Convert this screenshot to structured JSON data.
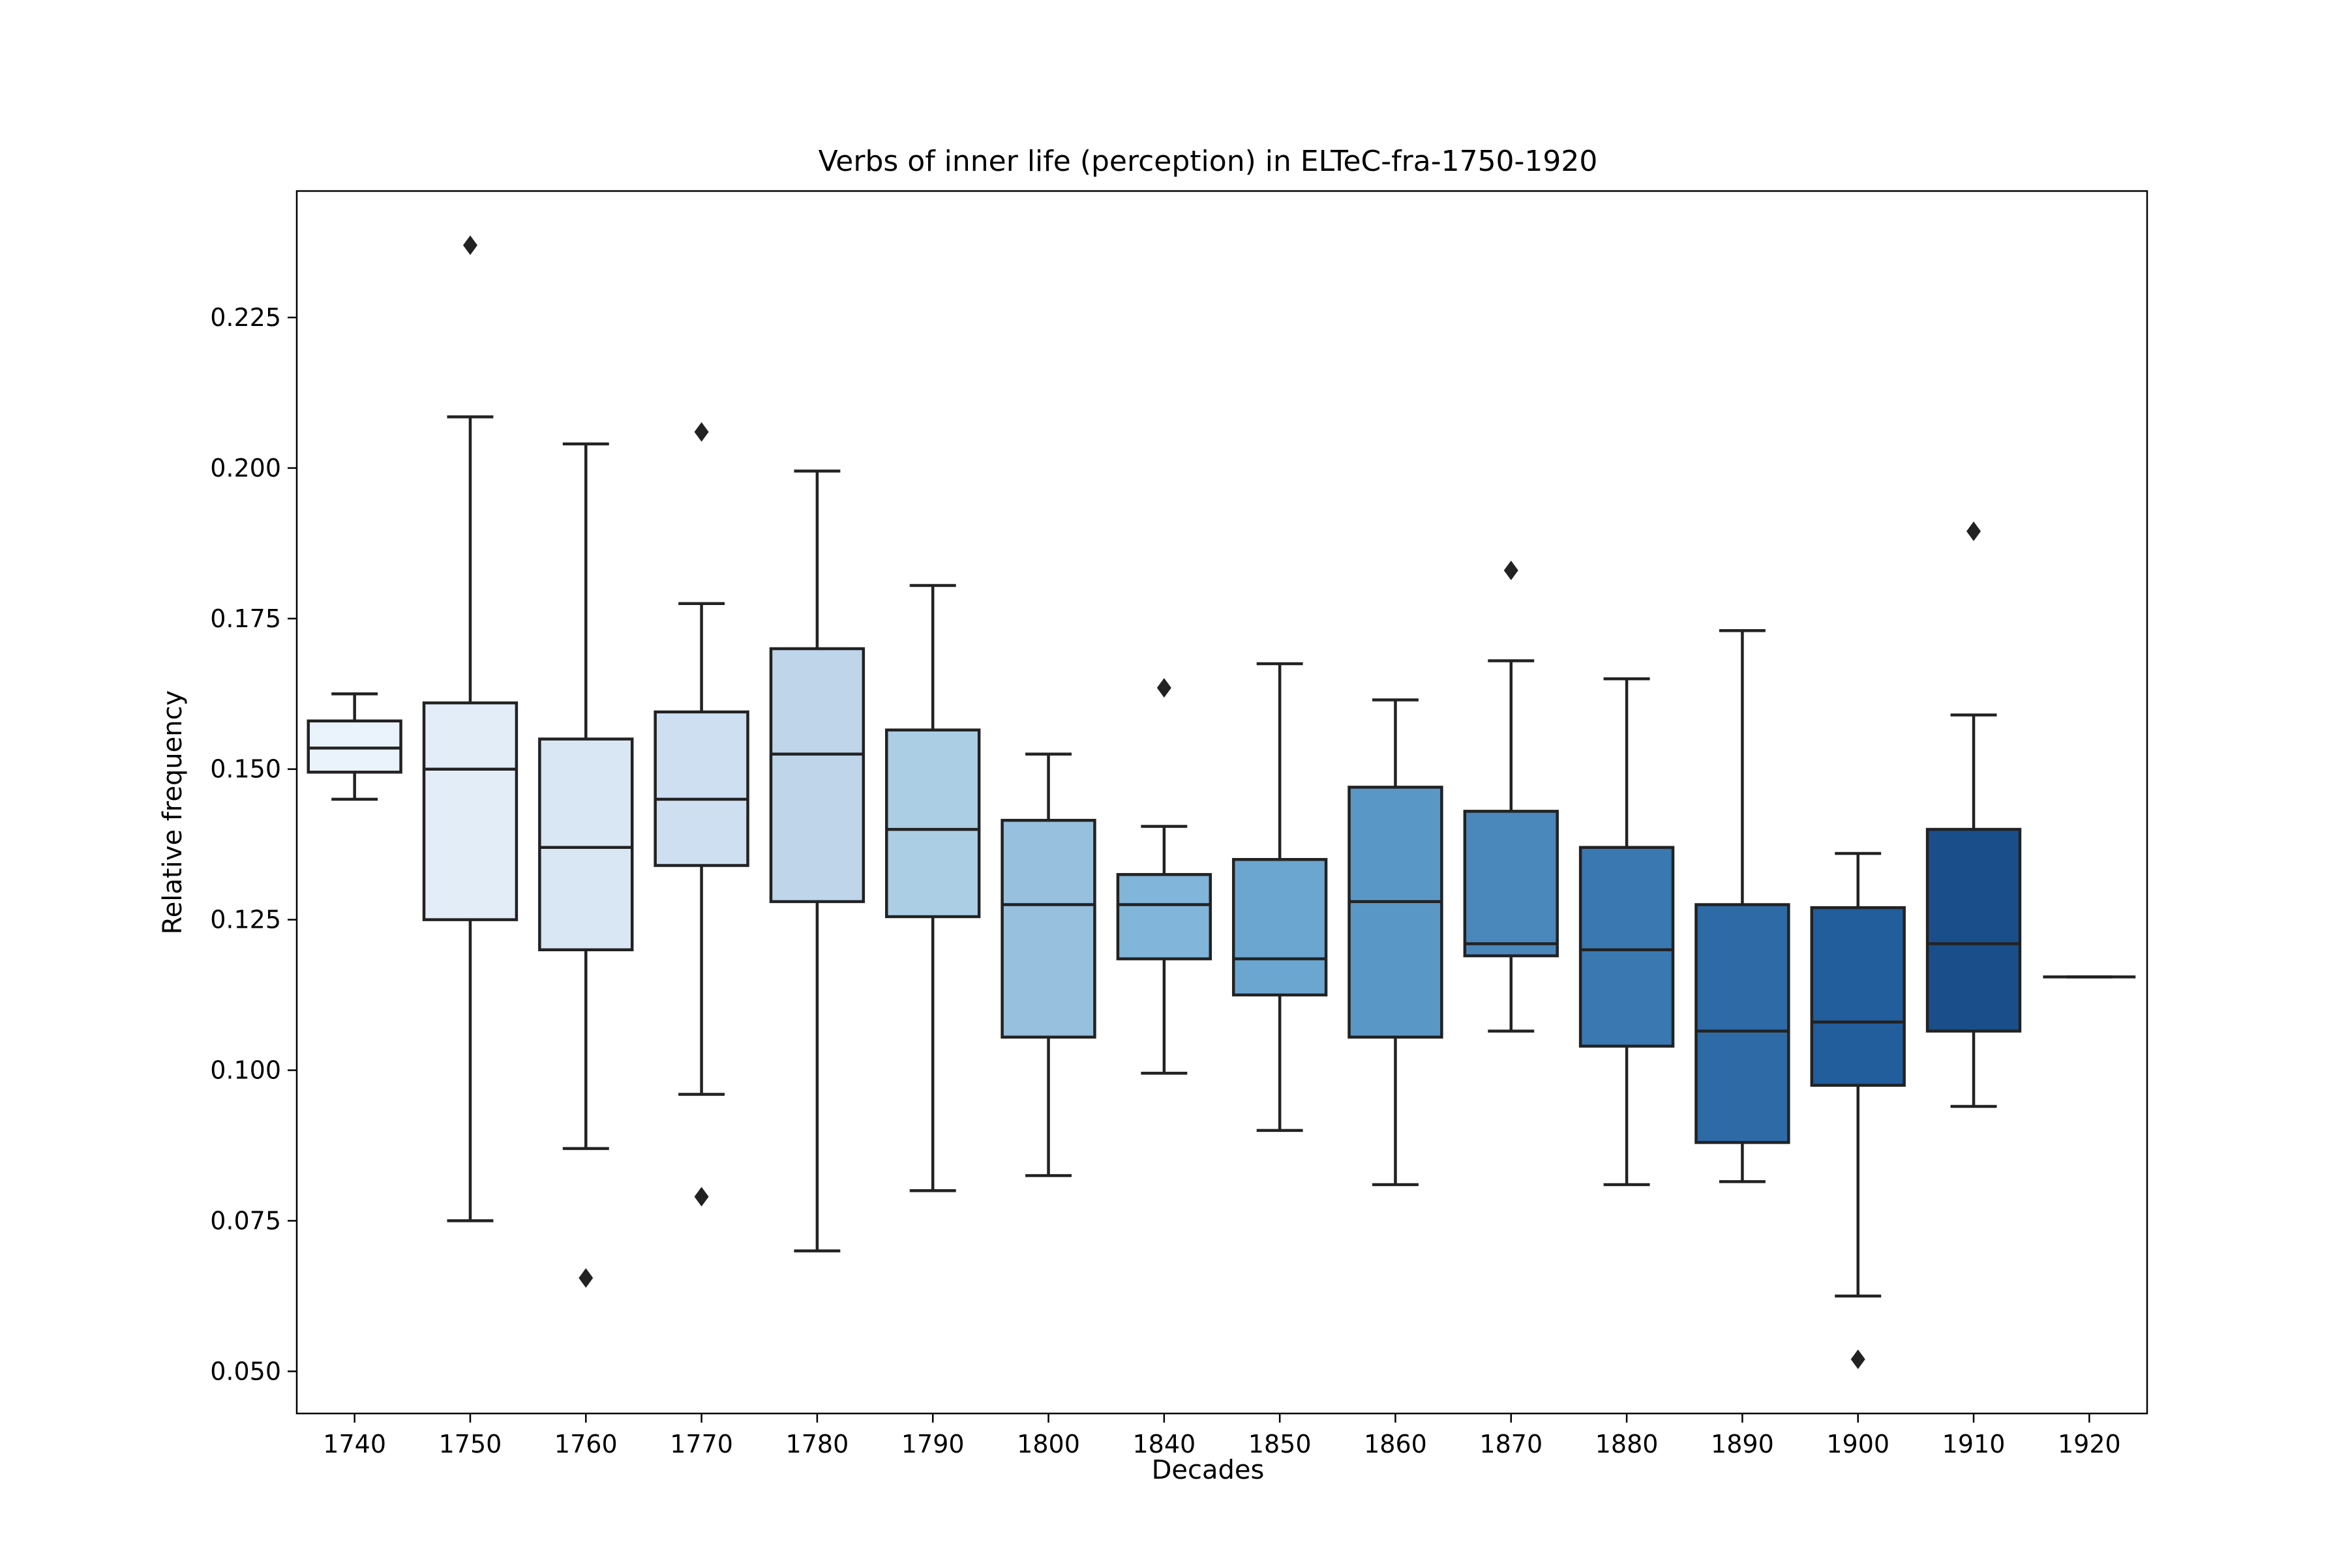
{
  "chart_data": {
    "type": "box",
    "title": "Verbs of inner life (perception) in ELTeC-fra-1750-1920",
    "xlabel": "Decades",
    "ylabel": "Relative frequency",
    "ylim": [
      0.043,
      0.246
    ],
    "yticks": [
      "0.050",
      "0.075",
      "0.100",
      "0.125",
      "0.150",
      "0.175",
      "0.200",
      "0.225"
    ],
    "grid": false,
    "legend": "none",
    "categories": [
      "1740",
      "1750",
      "1760",
      "1770",
      "1780",
      "1790",
      "1800",
      "1840",
      "1850",
      "1860",
      "1870",
      "1880",
      "1890",
      "1900",
      "1910",
      "1920"
    ],
    "boxes": [
      {
        "category": "1740",
        "whislo": 0.145,
        "q1": 0.1495,
        "med": 0.1535,
        "q3": 0.158,
        "whishi": 0.1625,
        "fliers": [],
        "color": "#eaf2fb"
      },
      {
        "category": "1750",
        "whislo": 0.075,
        "q1": 0.125,
        "med": 0.15,
        "q3": 0.161,
        "whishi": 0.2085,
        "fliers": [
          0.237
        ],
        "color": "#e2edf8"
      },
      {
        "category": "1760",
        "whislo": 0.087,
        "q1": 0.12,
        "med": 0.137,
        "q3": 0.155,
        "whishi": 0.204,
        "fliers": [
          0.0655
        ],
        "color": "#d9e7f5"
      },
      {
        "category": "1770",
        "whislo": 0.096,
        "q1": 0.134,
        "med": 0.145,
        "q3": 0.1595,
        "whishi": 0.1775,
        "fliers": [
          0.206,
          0.079
        ],
        "color": "#cddff1"
      },
      {
        "category": "1780",
        "whislo": 0.07,
        "q1": 0.128,
        "med": 0.1525,
        "q3": 0.17,
        "whishi": 0.1995,
        "fliers": [],
        "color": "#bed5ea"
      },
      {
        "category": "1790",
        "whislo": 0.08,
        "q1": 0.1255,
        "med": 0.14,
        "q3": 0.1565,
        "whishi": 0.1805,
        "fliers": [],
        "color": "#accee4"
      },
      {
        "category": "1800",
        "whislo": 0.0825,
        "q1": 0.1055,
        "med": 0.1275,
        "q3": 0.1415,
        "whishi": 0.1525,
        "fliers": [],
        "color": "#96c0de"
      },
      {
        "category": "1840",
        "whislo": 0.0995,
        "q1": 0.1185,
        "med": 0.1275,
        "q3": 0.1325,
        "whishi": 0.1405,
        "fliers": [
          0.1635
        ],
        "color": "#81b5da"
      },
      {
        "category": "1850",
        "whislo": 0.09,
        "q1": 0.1125,
        "med": 0.1185,
        "q3": 0.135,
        "whishi": 0.1675,
        "fliers": [],
        "color": "#6ba6d0"
      },
      {
        "category": "1860",
        "whislo": 0.081,
        "q1": 0.1055,
        "med": 0.128,
        "q3": 0.147,
        "whishi": 0.1615,
        "fliers": [],
        "color": "#5997c6"
      },
      {
        "category": "1870",
        "whislo": 0.1065,
        "q1": 0.119,
        "med": 0.121,
        "q3": 0.143,
        "whishi": 0.168,
        "fliers": [
          0.183
        ],
        "color": "#4a87bb"
      },
      {
        "category": "1880",
        "whislo": 0.081,
        "q1": 0.104,
        "med": 0.12,
        "q3": 0.137,
        "whishi": 0.165,
        "fliers": [],
        "color": "#3a78b1"
      },
      {
        "category": "1890",
        "whislo": 0.0815,
        "q1": 0.088,
        "med": 0.1065,
        "q3": 0.1275,
        "whishi": 0.173,
        "fliers": [],
        "color": "#2d6aa6"
      },
      {
        "category": "1900",
        "whislo": 0.0625,
        "q1": 0.0975,
        "med": 0.108,
        "q3": 0.127,
        "whishi": 0.136,
        "fliers": [
          0.052
        ],
        "color": "#225d9c"
      },
      {
        "category": "1910",
        "whislo": 0.094,
        "q1": 0.1065,
        "med": 0.121,
        "q3": 0.14,
        "whishi": 0.159,
        "fliers": [
          0.1895
        ],
        "color": "#1a4e8a"
      },
      {
        "category": "1920",
        "whislo": 0.1155,
        "q1": 0.1155,
        "med": 0.1155,
        "q3": 0.1155,
        "whishi": 0.1155,
        "fliers": [],
        "color": "#0f3b7a"
      }
    ],
    "line_color": "#222222"
  }
}
